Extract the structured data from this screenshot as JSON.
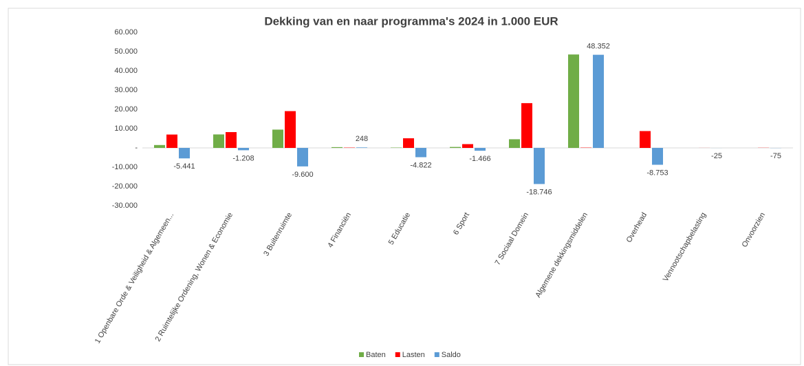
{
  "chart_data": {
    "type": "bar",
    "title": "Dekking van en naar programma's 2024 in 1.000 EUR",
    "categories": [
      "1 Openbare Orde & Veiligheid & Algemeen...",
      "2 Ruimtelijke Ordening, Wonen & Economie",
      "3 Buitenruimte",
      "4 Financiën",
      "5 Educatie",
      "6 Sport",
      "7 Sociaal Domein",
      "Algemene dekkingsmiddelen",
      "Overhead",
      "Vennootschapbelasting",
      "Onvoorzien"
    ],
    "series": [
      {
        "name": "Baten",
        "color": "#70ad47",
        "values": [
          1500,
          7000,
          9500,
          400,
          178,
          500,
          4500,
          48500,
          0,
          0,
          0
        ]
      },
      {
        "name": "Lasten",
        "color": "#ff0000",
        "values": [
          6941,
          8208,
          19100,
          152,
          5000,
          1966,
          23246,
          148,
          8753,
          25,
          75
        ]
      },
      {
        "name": "Saldo",
        "color": "#5b9bd5",
        "values": [
          -5441,
          -1208,
          -9600,
          248,
          -4822,
          -1466,
          -18746,
          48352,
          -8753,
          -25,
          -75
        ],
        "value_labels": [
          "-5.441",
          "-1.208",
          "-9.600",
          "248",
          "-4.822",
          "-1.466",
          "-18.746",
          "48.352",
          "-8.753",
          "-25",
          "-75"
        ]
      }
    ],
    "ylim": [
      -30000,
      60000
    ],
    "yticks": [
      {
        "value": -30000,
        "label": "-30.000"
      },
      {
        "value": -20000,
        "label": "-20.000"
      },
      {
        "value": -10000,
        "label": "-10.000"
      },
      {
        "value": 0,
        "label": "-"
      },
      {
        "value": 10000,
        "label": "10.000"
      },
      {
        "value": 20000,
        "label": "20.000"
      },
      {
        "value": 30000,
        "label": "30.000"
      },
      {
        "value": 40000,
        "label": "40.000"
      },
      {
        "value": 50000,
        "label": "50.000"
      },
      {
        "value": 60000,
        "label": "60.000"
      }
    ],
    "grid": false,
    "legend": "bottom"
  }
}
